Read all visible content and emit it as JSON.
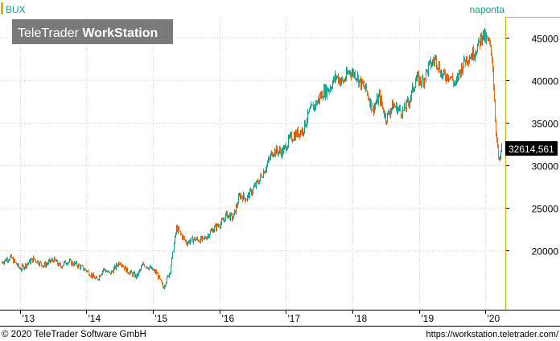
{
  "colors": {
    "up": "#12a08a",
    "down": "#ee6a12",
    "accent": "#f0a800",
    "grid": "#cccccc",
    "watermark_bg": "#7a7a7a",
    "price_label_bg": "#000000"
  },
  "header": {
    "symbol": "BUX",
    "period": "naponta"
  },
  "watermark": {
    "brand_light": "TeleTrader ",
    "brand_bold": "WorkStation"
  },
  "price_label": "32614,561",
  "footer": {
    "copyright": "© 2020 TeleTrader Software GmbH",
    "url": "https://workstation.teletrader.com/"
  },
  "chart_data": {
    "type": "line",
    "title": "BUX",
    "grid": true,
    "ylim": [
      13000,
      47500
    ],
    "xlim": [
      2012.7,
      2020.3
    ],
    "x_ticks": [
      {
        "label": "'13",
        "value": 2013.0
      },
      {
        "label": "'14",
        "value": 2014.0
      },
      {
        "label": "'15",
        "value": 2015.0
      },
      {
        "label": "'16",
        "value": 2016.0
      },
      {
        "label": "'17",
        "value": 2017.0
      },
      {
        "label": "'18",
        "value": 2018.0
      },
      {
        "label": "'19",
        "value": 2019.0
      },
      {
        "label": "'20",
        "value": 2020.0
      }
    ],
    "y_ticks": [
      {
        "label": "20000",
        "value": 20000
      },
      {
        "label": "25000",
        "value": 25000
      },
      {
        "label": "30000",
        "value": 30000
      },
      {
        "label": "35000",
        "value": 35000
      },
      {
        "label": "40000",
        "value": 40000
      },
      {
        "label": "45000",
        "value": 45000
      }
    ],
    "last_value": 32614.561,
    "series": [
      {
        "name": "BUX",
        "x": [
          2012.7,
          2012.85,
          2013.0,
          2013.1,
          2013.2,
          2013.35,
          2013.5,
          2013.6,
          2013.7,
          2013.85,
          2014.0,
          2014.15,
          2014.25,
          2014.35,
          2014.5,
          2014.6,
          2014.75,
          2014.85,
          2014.95,
          2015.05,
          2015.15,
          2015.25,
          2015.35,
          2015.5,
          2015.6,
          2015.75,
          2015.9,
          2016.05,
          2016.1,
          2016.2,
          2016.3,
          2016.4,
          2016.5,
          2016.6,
          2016.7,
          2016.8,
          2016.95,
          2017.05,
          2017.15,
          2017.25,
          2017.35,
          2017.45,
          2017.55,
          2017.65,
          2017.75,
          2017.85,
          2017.95,
          2018.05,
          2018.1,
          2018.2,
          2018.3,
          2018.4,
          2018.5,
          2018.6,
          2018.75,
          2018.85,
          2018.95,
          2019.05,
          2019.15,
          2019.25,
          2019.35,
          2019.45,
          2019.55,
          2019.6,
          2019.7,
          2019.8,
          2019.9,
          2019.95,
          2020.0,
          2020.05,
          2020.1,
          2020.15,
          2020.2,
          2020.25
        ],
        "values": [
          18500,
          19200,
          17800,
          18400,
          19000,
          18200,
          18900,
          18100,
          18700,
          18300,
          17600,
          16500,
          17800,
          17200,
          18700,
          17600,
          16900,
          18400,
          17900,
          17300,
          15600,
          17500,
          22600,
          20900,
          21300,
          21200,
          22500,
          23400,
          24200,
          23800,
          26500,
          26100,
          27200,
          28400,
          29900,
          31700,
          31600,
          33100,
          33700,
          34200,
          36300,
          37300,
          38600,
          39100,
          40500,
          39800,
          41100,
          40700,
          39900,
          38900,
          36600,
          38100,
          35500,
          37100,
          36300,
          37600,
          40200,
          39900,
          41700,
          42600,
          40500,
          40700,
          39400,
          40900,
          42600,
          43100,
          44300,
          45600,
          44800,
          44400,
          42600,
          34500,
          30100,
          32614
        ]
      }
    ]
  }
}
